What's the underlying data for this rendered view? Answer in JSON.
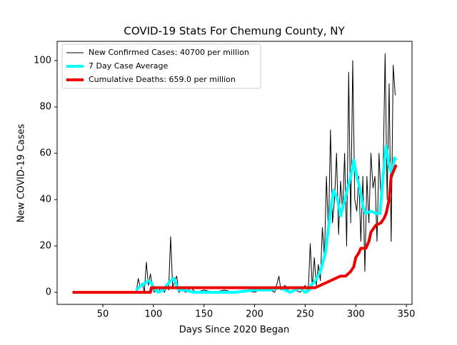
{
  "chart_data": {
    "type": "line",
    "title": "COVID-19 Stats For Chemung County, NY",
    "x_label": "Days Since 2020 Began",
    "y_label": "New COVID-19 Cases",
    "xlim": [
      4.8,
      355.6
    ],
    "ylim": [
      -5.2,
      108.3
    ],
    "xticks": [
      50,
      100,
      150,
      200,
      250,
      300,
      350
    ],
    "yticks": [
      0,
      20,
      40,
      60,
      80,
      100
    ],
    "legend": "upper left",
    "series": [
      {
        "name": "New Confirmed Cases: 40700 per million",
        "color": "#000000",
        "linewidth": 1,
        "x": [
          83,
          85,
          87,
          89,
          91,
          93,
          95,
          97,
          99,
          101,
          103,
          105,
          107,
          109,
          111,
          113,
          115,
          117,
          119,
          121,
          123,
          125,
          128,
          132,
          137,
          142,
          150,
          160,
          170,
          180,
          190,
          200,
          210,
          220,
          224,
          226,
          230,
          235,
          240,
          245,
          250,
          253,
          255,
          257,
          259,
          261,
          263,
          265,
          267,
          269,
          271,
          273,
          275,
          277,
          279,
          281,
          283,
          285,
          287,
          289,
          291,
          293,
          295,
          297,
          299,
          301,
          303,
          305,
          307,
          309,
          311,
          313,
          315,
          317,
          319,
          321,
          323,
          325,
          327,
          329,
          331,
          333,
          335,
          337,
          339
        ],
        "values": [
          0,
          6,
          2,
          4,
          0,
          13,
          3,
          8,
          2,
          0,
          1,
          0,
          2,
          1,
          0,
          3,
          1,
          24,
          2,
          5,
          7,
          0,
          1,
          0,
          2,
          0,
          1,
          0,
          1,
          0,
          1,
          0,
          2,
          0,
          7,
          1,
          3,
          0,
          1,
          0,
          3,
          0,
          21,
          2,
          15,
          3,
          12,
          5,
          28,
          15,
          50,
          25,
          70,
          30,
          40,
          60,
          25,
          48,
          35,
          60,
          20,
          95,
          30,
          100,
          40,
          35,
          50,
          22,
          50,
          9,
          50,
          30,
          60,
          45,
          50,
          22,
          60,
          40,
          50,
          103,
          40,
          90,
          22,
          98,
          85
        ]
      },
      {
        "name": "7 Day Case Average",
        "color": "#00ffff",
        "linewidth": 4,
        "x": [
          83,
          88,
          92,
          95,
          98,
          100,
          105,
          110,
          113,
          117,
          120,
          122,
          125,
          130,
          140,
          160,
          180,
          200,
          215,
          225,
          230,
          235,
          240,
          245,
          250,
          254,
          256,
          260,
          265,
          270,
          275,
          278,
          282,
          285,
          288,
          292,
          295,
          298,
          301,
          304,
          307,
          310,
          315,
          320,
          324,
          327,
          330,
          333,
          336,
          338,
          340
        ],
        "values": [
          1,
          3,
          4,
          5,
          4,
          2,
          0,
          1,
          3,
          5,
          6,
          4,
          1,
          1,
          0,
          0,
          0,
          1,
          1,
          2,
          1,
          0,
          1,
          2,
          0,
          1,
          3,
          5,
          9,
          17,
          35,
          44,
          40,
          33,
          38,
          45,
          50,
          57,
          50,
          45,
          37,
          34,
          35,
          34,
          34,
          50,
          63,
          55,
          50,
          58,
          57
        ]
      },
      {
        "name": "Cumulative Deaths: 659.0 per million",
        "color": "#ee0000",
        "linewidth": 4,
        "x": [
          20,
          97,
          98,
          255,
          260,
          265,
          270,
          275,
          280,
          285,
          290,
          295,
          298,
          300,
          303,
          305,
          310,
          313,
          315,
          320,
          325,
          328,
          330,
          333,
          335,
          338,
          340
        ],
        "values": [
          0,
          0,
          2,
          2,
          2,
          3,
          4,
          5,
          6,
          7,
          7,
          9,
          11,
          15,
          17,
          19,
          19,
          22,
          26,
          29,
          30,
          32,
          34,
          40,
          50,
          53,
          55
        ]
      }
    ]
  }
}
